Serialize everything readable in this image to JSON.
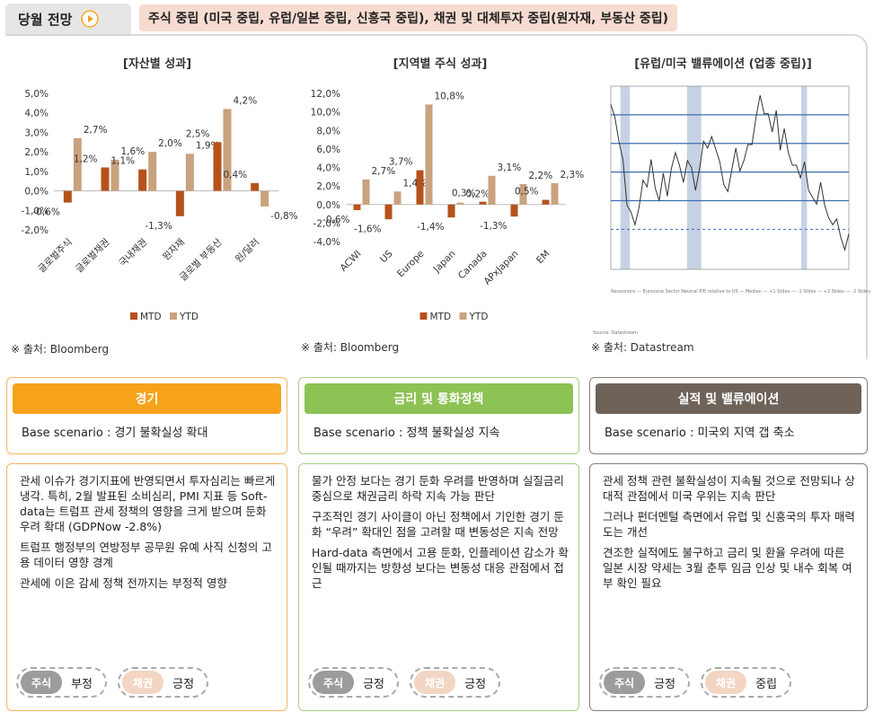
{
  "header": {
    "tab_label": "당월 전망",
    "summary": "주식 중립 (미국 중립, 유럽/일본 중립, 신흥국 중립), 채권 및 대체투자 중립(원자재, 부동산 중립)"
  },
  "colors": {
    "mtd": "#b5521b",
    "ytd": "#c9a27e",
    "orange": "#f6a21b",
    "green": "#8dc255",
    "brown": "#6e6259",
    "band": "#b8c7dd",
    "median": "#3a6fb0"
  },
  "panels": {
    "asset": {
      "title": "[자산별 성과]",
      "source": "※ 출처: Bloomberg"
    },
    "region": {
      "title": "[지역별 주식 성과]",
      "source": "※ 출처: Bloomberg"
    },
    "valuation": {
      "title": "[유럽/미국 밸류에이션 (업종 중립)]",
      "source": "※ 출처: Datastream",
      "small_source": "Source: Datastream"
    }
  },
  "chart_data": [
    {
      "type": "bar",
      "title": "[자산별 성과]",
      "categories": [
        "글로벌주식",
        "글로벌채권",
        "국내채권",
        "원자재",
        "글로벌 부동산",
        "원/달러"
      ],
      "series": [
        {
          "name": "MTD",
          "values": [
            -0.6,
            1.2,
            1.1,
            -1.3,
            2.5,
            0.4
          ]
        },
        {
          "name": "YTD",
          "values": [
            2.7,
            1.6,
            2.0,
            1.9,
            4.2,
            -0.8
          ]
        }
      ],
      "yticks": [
        "5,0%",
        "4,0%",
        "3,0%",
        "2,0%",
        "1,0%",
        "0,0%",
        "-1,0%",
        "-2,0%"
      ],
      "ylim": [
        -2,
        5
      ],
      "data_labels": {
        "MTD": [
          "-0,6%",
          "1,2%",
          "1,1%",
          "-1,3%",
          "2,5%",
          "0,4%"
        ],
        "YTD": [
          "2,7%",
          "1,6%",
          "2,0%",
          "1,9%",
          "4,2%",
          "-0,8%"
        ]
      },
      "legend": [
        "MTD",
        "YTD"
      ],
      "legend_position": "bottom"
    },
    {
      "type": "bar",
      "title": "[지역별 주식 성과]",
      "categories": [
        "ACWI",
        "US",
        "Europe",
        "Japan",
        "Canada",
        "APxJapan",
        "EM"
      ],
      "series": [
        {
          "name": "MTD",
          "values": [
            -0.6,
            -1.6,
            3.7,
            -1.4,
            0.3,
            -1.3,
            0.5
          ]
        },
        {
          "name": "YTD",
          "values": [
            2.7,
            1.4,
            10.8,
            0.2,
            3.1,
            2.2,
            2.3
          ]
        }
      ],
      "yticks": [
        "12,0%",
        "10,0%",
        "8,0%",
        "6,0%",
        "4,0%",
        "2,0%",
        "0,0%",
        "-2,0%",
        "-4,0%"
      ],
      "ylim": [
        -4,
        12
      ],
      "data_labels": {
        "MTD": [
          "-0,6%",
          "-1,6%",
          "3,7%",
          "-1,4%",
          "0,3%",
          "-1,3%",
          "0,5%"
        ],
        "YTD": [
          "2,7%",
          "1,4%",
          "10,8%",
          "0,2%",
          "3,1%",
          "2,2%",
          "2,3%"
        ]
      },
      "legend": [
        "MTD",
        "YTD"
      ],
      "legend_position": "bottom"
    },
    {
      "type": "line",
      "title": "[유럽/미국 밸류에이션 (업종 중립)]",
      "x_start": 2000,
      "x_end": 2025,
      "series_values": [
        0.98,
        0.95,
        0.9,
        0.86,
        0.8,
        0.78,
        0.75,
        0.8,
        0.84,
        0.82,
        0.86,
        0.83,
        0.8,
        0.84,
        0.82,
        0.86,
        0.88,
        0.85,
        0.84,
        0.87,
        0.85,
        0.83,
        0.86,
        0.9,
        0.88,
        0.92,
        0.89,
        0.86,
        0.84,
        0.82,
        0.85,
        0.88,
        0.86,
        0.87,
        0.89,
        0.91,
        0.95,
        0.98,
        0.94,
        0.96,
        0.92,
        0.95,
        0.9,
        0.93,
        0.88,
        0.85,
        0.87,
        0.84,
        0.86,
        0.83,
        0.81,
        0.79,
        0.82,
        0.8,
        0.77,
        0.75,
        0.78,
        0.74,
        0.71,
        0.73
      ],
      "reference_lines": [
        "Median",
        "+1 Stdev",
        "-1 Stdev",
        "+2 Stdev",
        "-2 Stdev"
      ],
      "recession_bands": [
        [
          2001,
          2002
        ],
        [
          2008,
          2009.5
        ],
        [
          2020,
          2020.6
        ]
      ],
      "legend": [
        "Recessions",
        "Eurozone Sector Neutral P/E relative to US",
        "Median",
        "+1 Stdev",
        "-1 Stdev",
        "+2 Stdev",
        "-2 Stdev"
      ]
    }
  ],
  "cards": [
    {
      "title": "경기",
      "scenario": "Base scenario : 경기 불확실성 확대",
      "bullets": [
        "관세 이슈가 경기지표에 반영되면서 투자심리는 빠르게 냉각. 특히, 2월 발표된 소비심리, PMI 지표 등 Soft-data는 트럼프 관세 정책의 영향을 크게 받으며 둔화 우려 확대 (GDPNow -2.8%)",
        "트럼프 행정부의 연방정부 공무원 유예 사직 신청의 고용 데이터 영향 경계",
        "관세에 이은 감세 정책 전까지는 부정적 영향"
      ],
      "stock_label": "주식",
      "stock_view": "부정",
      "bond_label": "채권",
      "bond_view": "긍정"
    },
    {
      "title": "금리 및 통화정책",
      "scenario": "Base scenario : 정책 불확실성 지속",
      "bullets": [
        "물가 안정 보다는 경기 둔화 우려를 반영하며 실질금리 중심으로 채권금리 하락 지속 가능 판단",
        "구조적인 경기 사이클이 아닌 정책에서 기인한 경기 둔화 “우려” 확대인 점을 고려할 때 변동성은 지속 전망",
        "Hard-data 측면에서 고용 둔화, 인플레이션 감소가 확인될 때까지는 방향성 보다는 변동성 대응 관점에서 접근"
      ],
      "stock_label": "주식",
      "stock_view": "긍정",
      "bond_label": "채권",
      "bond_view": "긍정"
    },
    {
      "title": "실적 및 밸류에이션",
      "scenario": "Base scenario : 미국외 지역 갭 축소",
      "bullets": [
        "관세 정책 관련 불확실성이 지속될 것으로 전망되나 상대적 관점에서 미국 우위는 지속 판단",
        "그러나 펀더멘털 측면에서 유럽 및 신흥국의 투자 매력도는 개선",
        "견조한 실적에도 불구하고 금리 및 환율 우려에 따른 일본 시장 약세는 3월 춘투 임금 인상 및 내수 회복 여부 확인 필요"
      ],
      "stock_label": "주식",
      "stock_view": "긍정",
      "bond_label": "채권",
      "bond_view": "중립"
    }
  ]
}
